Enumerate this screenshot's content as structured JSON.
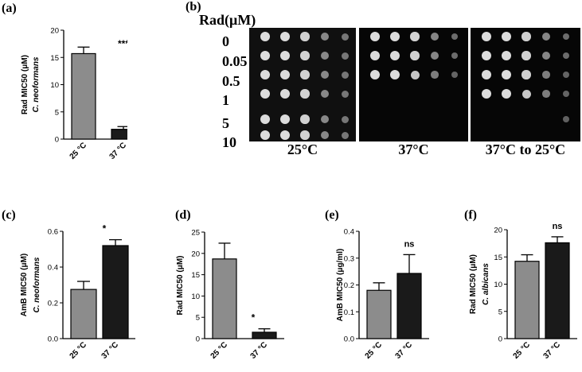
{
  "panels": {
    "a": "(a)",
    "b": "(b)",
    "c": "(c)",
    "d": "(d)",
    "e": "(e)",
    "f": "(f)"
  },
  "plates": {
    "rad_label": "Rad(μM)",
    "concentrations": [
      "0",
      "0.05",
      "0.5",
      "1",
      "5",
      "10"
    ],
    "temperatures": [
      "25°C",
      "37°C",
      "37°C to 25°C"
    ]
  },
  "chart_data": [
    {
      "id": "a",
      "type": "bar",
      "categories": [
        "25 °C",
        "37 °C"
      ],
      "values": [
        15.7,
        1.8
      ],
      "errors": [
        1.2,
        0.5
      ],
      "colors": [
        "#8c8c8c",
        "#1a1a1a"
      ],
      "ylabel_line1": "Rad MIC50 (μM)",
      "ylabel_line2": "C. neoformans",
      "ylim": [
        0,
        20
      ],
      "yticks": [
        "0",
        "5",
        "10",
        "15",
        "20"
      ],
      "annotation": "***"
    },
    {
      "id": "c",
      "type": "bar",
      "categories": [
        "25 °C",
        "37 °C"
      ],
      "values": [
        0.275,
        0.52
      ],
      "errors": [
        0.045,
        0.033
      ],
      "colors": [
        "#8c8c8c",
        "#1a1a1a"
      ],
      "ylabel_line1": "AmB MIC50 (μM)",
      "ylabel_line2": "C. neoformans",
      "ylim": [
        0,
        0.6
      ],
      "yticks": [
        "0.0",
        "0.2",
        "0.4",
        "0.6"
      ],
      "annotation": "*"
    },
    {
      "id": "d",
      "type": "bar",
      "categories": [
        "25 °C",
        "37 °C"
      ],
      "values": [
        18.7,
        1.5
      ],
      "errors": [
        3.7,
        0.8
      ],
      "colors": [
        "#8c8c8c",
        "#1a1a1a"
      ],
      "ylabel_line1": "Rad MIC50 (μM)",
      "ylabel_line2": "",
      "ylim": [
        0,
        25
      ],
      "yticks": [
        "0",
        "5",
        "10",
        "15",
        "20",
        "25"
      ],
      "annotation": "*"
    },
    {
      "id": "e",
      "type": "bar",
      "categories": [
        "25 °C",
        "37 °C"
      ],
      "values": [
        0.18,
        0.243
      ],
      "errors": [
        0.028,
        0.07
      ],
      "colors": [
        "#8c8c8c",
        "#1a1a1a"
      ],
      "ylabel_line1": "AmB MIC50 (μg/ml)",
      "ylabel_line2": "",
      "ylim": [
        0,
        0.4
      ],
      "yticks": [
        "0.0",
        "0.1",
        "0.2",
        "0.3",
        "0.4"
      ],
      "annotation": "ns"
    },
    {
      "id": "f",
      "type": "bar",
      "categories": [
        "25 °C",
        "37 °C"
      ],
      "values": [
        14.2,
        17.6
      ],
      "errors": [
        1.2,
        1.1
      ],
      "colors": [
        "#8c8c8c",
        "#1a1a1a"
      ],
      "ylabel_line1": "Rad MIC50 (μM)",
      "ylabel_line2": "C. albicans",
      "ylim": [
        0,
        20
      ],
      "yticks": [
        "0",
        "5",
        "10",
        "15",
        "20"
      ],
      "annotation": "ns"
    }
  ]
}
